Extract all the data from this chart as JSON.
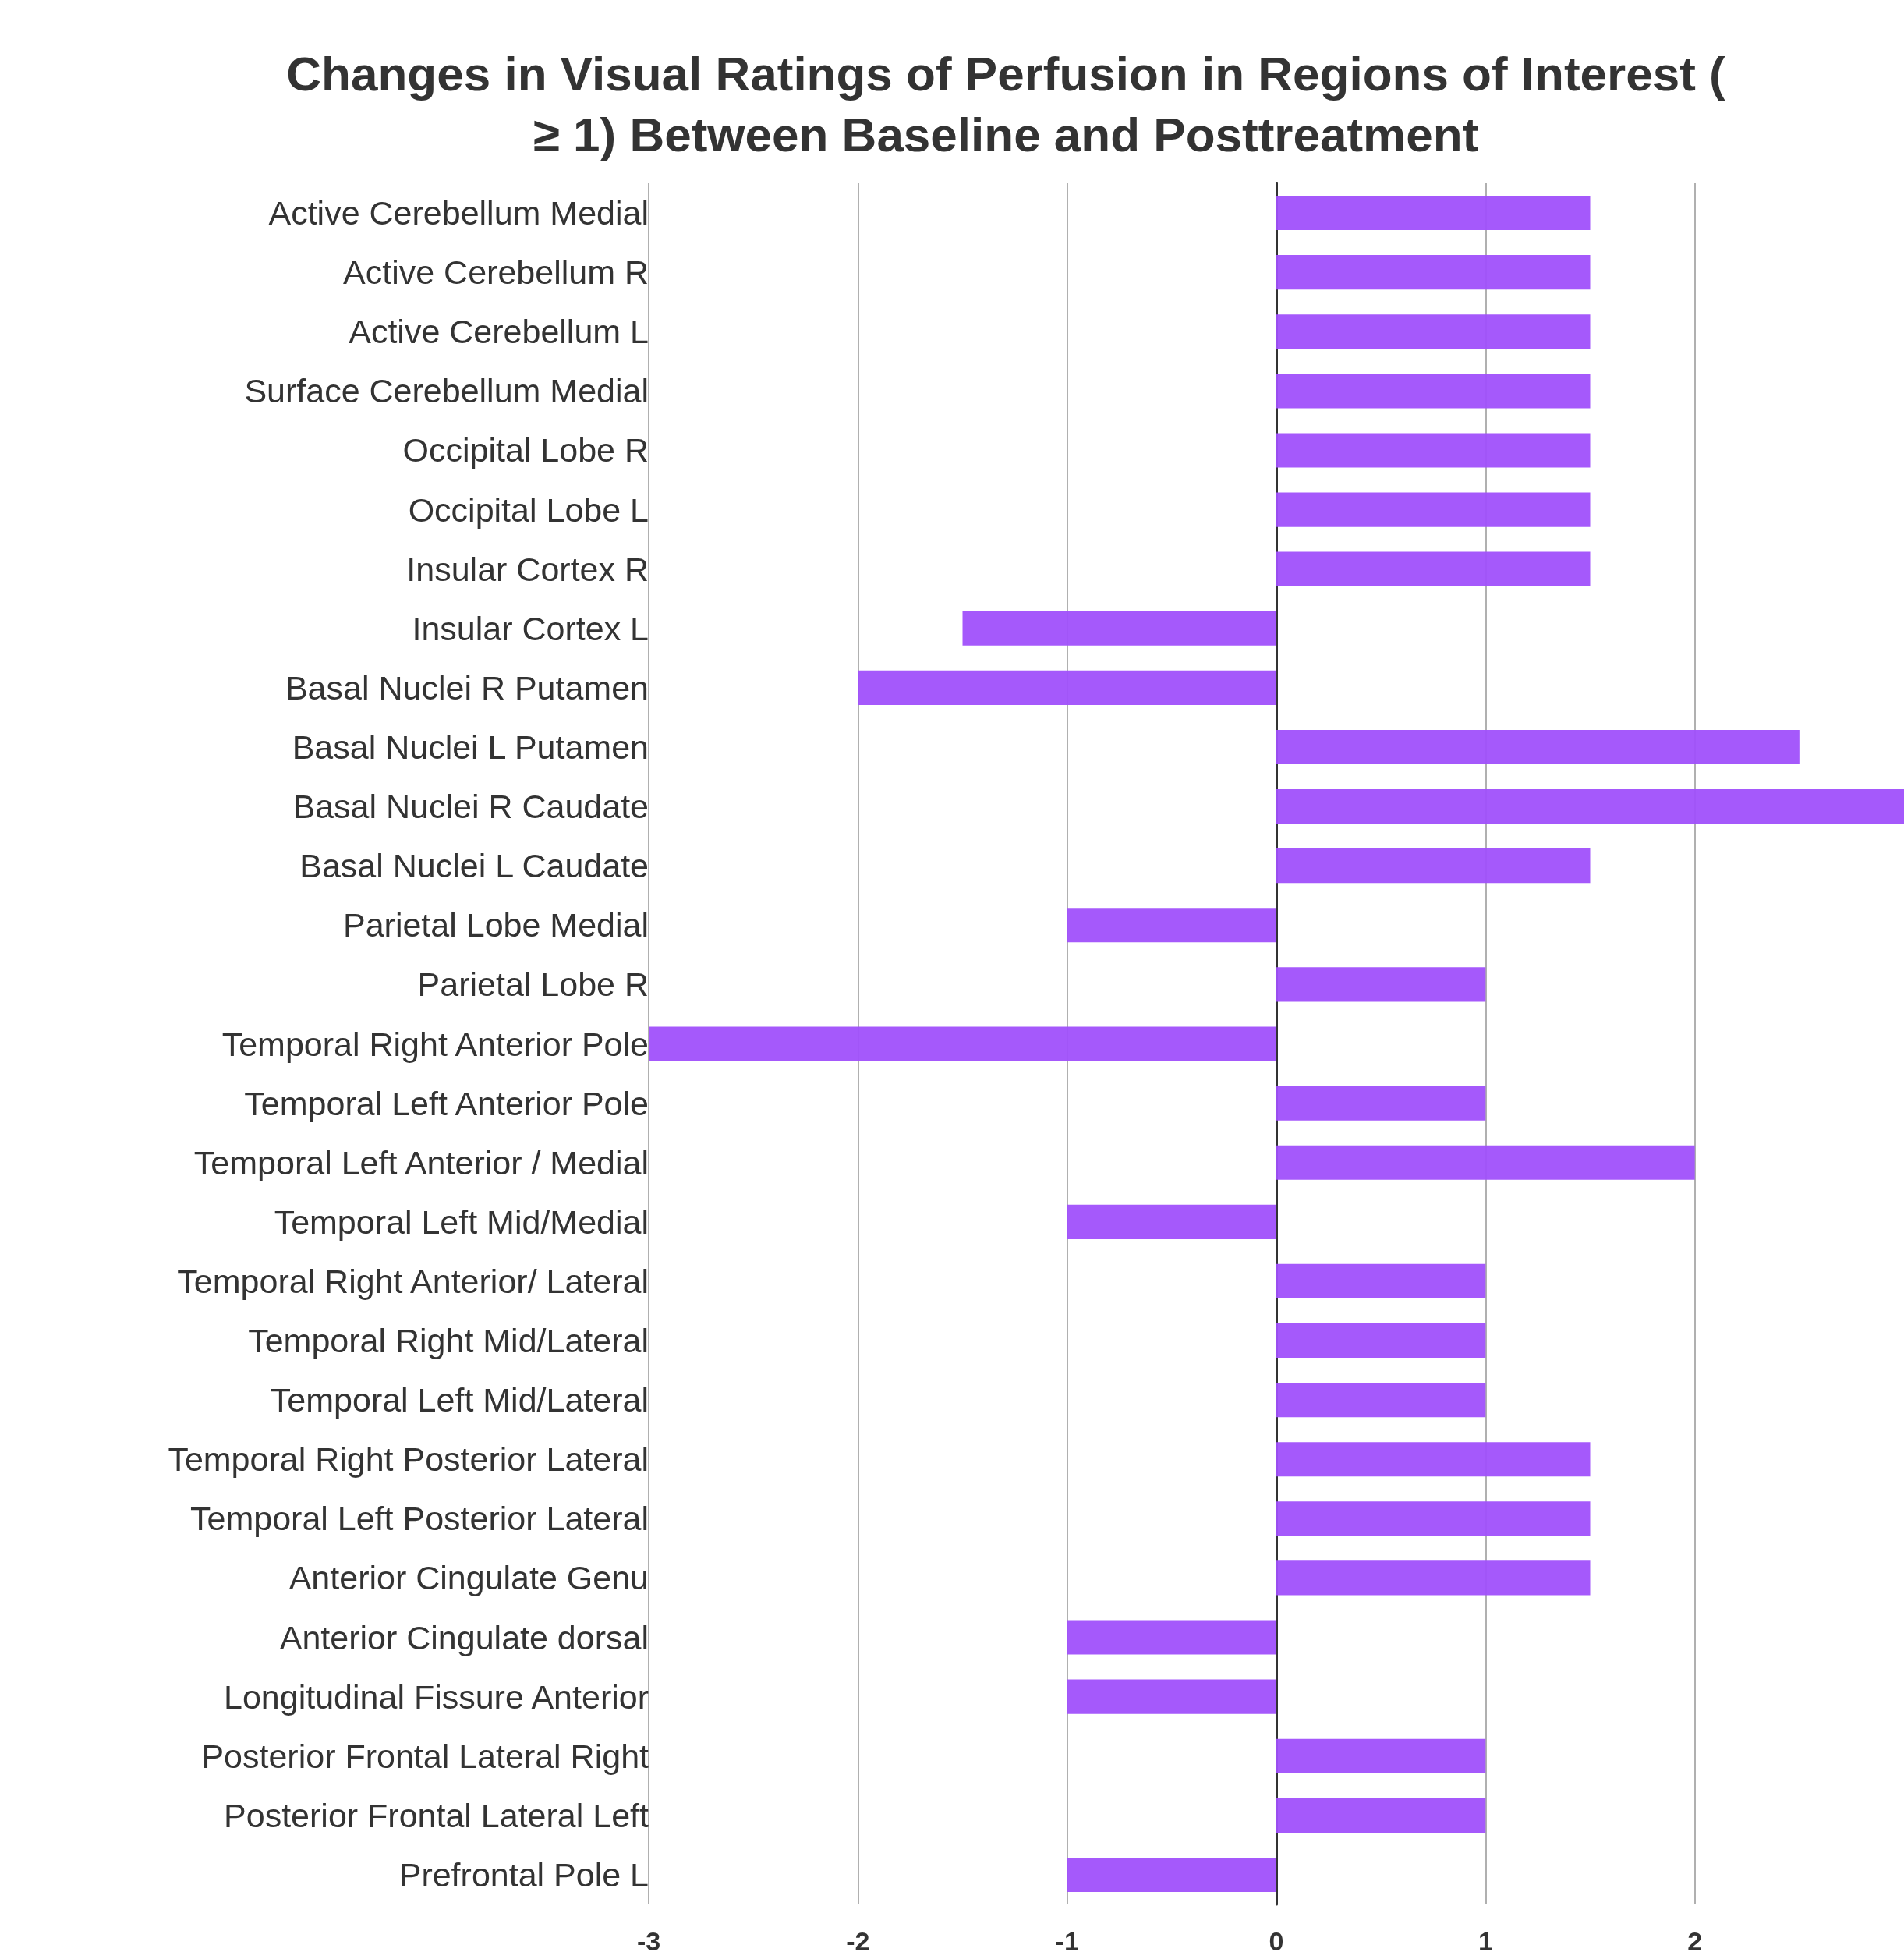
{
  "chart_data": {
    "type": "bar",
    "orientation": "horizontal",
    "title": "Changes in Visual Ratings of Perfusion in Regions of Interest (≥ 1) Between Baseline and Posttreatment",
    "categories": [
      "Active Cerebellum Medial",
      "Active Cerebellum R",
      "Active Cerebellum L",
      "Surface Cerebellum Medial",
      "Occipital Lobe R",
      "Occipital Lobe L",
      "Insular Cortex R",
      "Insular Cortex L",
      "Basal Nuclei R Putamen",
      "Basal Nuclei L Putamen",
      "Basal Nuclei R Caudate",
      "Basal Nuclei L Caudate",
      "Parietal Lobe Medial",
      "Parietal Lobe R",
      "Temporal Right Anterior Pole",
      "Temporal Left Anterior Pole",
      "Temporal Left Anterior / Medial",
      "Temporal Left Mid/Medial",
      "Temporal Right Anterior/ Lateral",
      "Temporal Right Mid/Lateral",
      "Temporal Left Mid/Lateral",
      "Temporal Right Posterior Lateral",
      "Temporal Left Posterior Lateral",
      "Anterior Cingulate Genu",
      "Anterior Cingulate dorsal",
      "Longitudinal Fissure Anterior",
      "Posterior Frontal Lateral Right",
      "Posterior Frontal Lateral Left",
      "Prefrontal Pole L"
    ],
    "values": [
      1.5,
      1.5,
      1.5,
      1.5,
      1.5,
      1.5,
      1.5,
      -1.5,
      -2,
      2.5,
      3,
      1.5,
      -1,
      1,
      -3,
      1,
      2,
      -1,
      1,
      1,
      1,
      1.5,
      1.5,
      1.5,
      -1,
      -1,
      1,
      1,
      -1
    ],
    "color": "#a050fb",
    "xlim": [
      -3,
      3
    ],
    "xticks": [
      -3,
      -2,
      -1,
      0,
      1,
      2
    ],
    "grid": "x"
  }
}
